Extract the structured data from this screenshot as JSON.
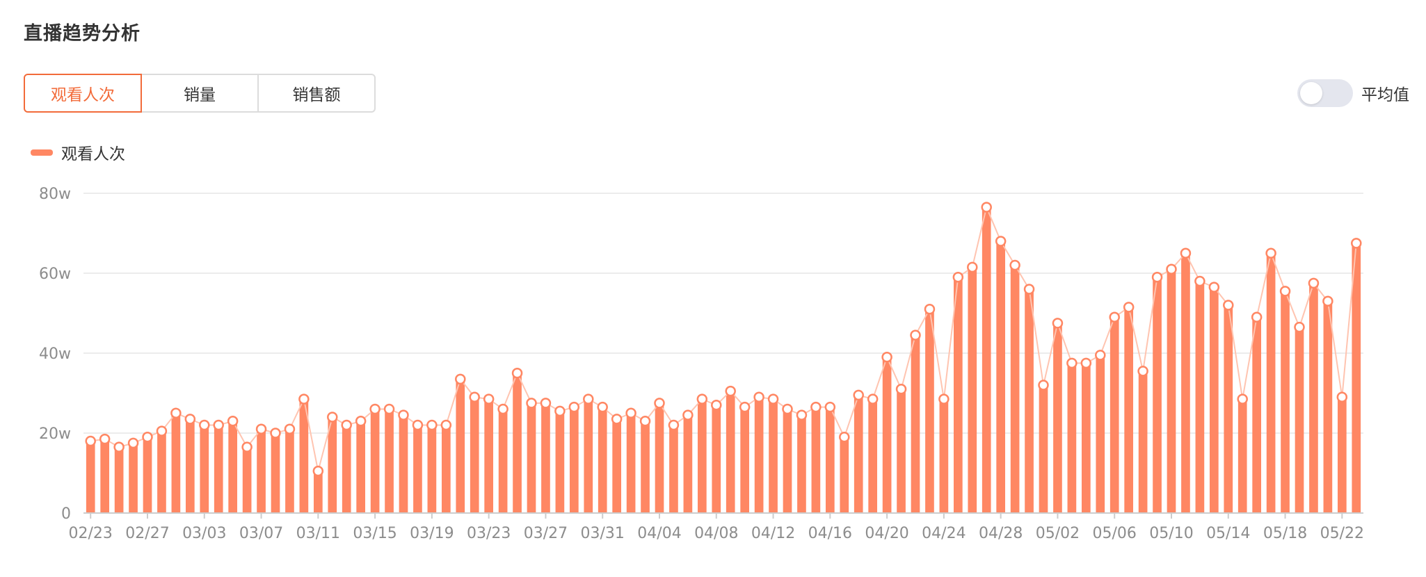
{
  "page": {
    "title": "直播趋势分析"
  },
  "tabs": [
    {
      "label": "观看人次",
      "active": true
    },
    {
      "label": "销量",
      "active": false
    },
    {
      "label": "销售额",
      "active": false
    }
  ],
  "toggle": {
    "label": "平均值",
    "on": false
  },
  "colors": {
    "accent": "#f26b3a",
    "bar": "#ff8763",
    "line": "#ffc4b0",
    "grid": "#e6e6e6"
  },
  "chart_data": {
    "type": "bar",
    "legend": "top-left",
    "series": [
      {
        "name": "观看人次",
        "values": [
          18,
          18.5,
          16.5,
          17.5,
          19,
          20.5,
          25,
          23.5,
          22,
          22,
          23,
          16.5,
          21,
          20,
          21,
          28.5,
          10.5,
          24,
          22,
          23,
          26,
          26,
          24.5,
          22,
          22,
          22,
          33.5,
          29,
          28.5,
          26,
          35,
          27.5,
          27.5,
          25.5,
          26.5,
          28.5,
          26.5,
          23.5,
          25,
          23,
          27.5,
          22,
          24.5,
          28.5,
          27,
          30.5,
          26.5,
          29,
          28.5,
          26,
          24.5,
          26.5,
          26.5,
          19,
          29.5,
          28.5,
          39,
          31,
          44.5,
          51,
          28.5,
          59,
          61.5,
          76.5,
          68,
          62,
          56,
          32,
          47.5,
          37.5,
          37.5,
          39.5,
          49,
          51.5,
          35.5,
          59,
          61,
          65,
          58,
          56.5,
          52,
          28.5,
          49,
          65,
          55.5,
          46.5,
          57.5,
          53,
          29,
          67.5
        ]
      }
    ],
    "x_tick_labels": [
      "02/23",
      "02/27",
      "03/03",
      "03/07",
      "03/11",
      "03/15",
      "03/19",
      "03/23",
      "03/27",
      "03/31",
      "04/04",
      "04/08",
      "04/12",
      "04/16",
      "04/20",
      "04/24",
      "04/28",
      "05/02",
      "05/06",
      "05/10",
      "05/14",
      "05/18",
      "05/22"
    ],
    "x_tick_every": 4,
    "y_ticks": [
      0,
      20,
      40,
      60,
      80
    ],
    "y_tick_labels": [
      "0",
      "20w",
      "40w",
      "60w",
      "80w"
    ],
    "ylim": [
      0,
      80
    ],
    "grid": true,
    "line_overlay": true
  }
}
